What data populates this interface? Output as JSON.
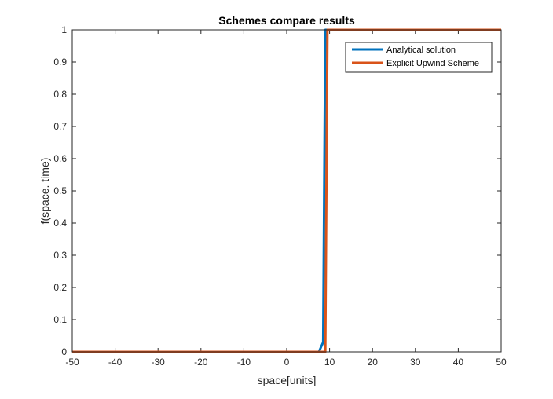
{
  "chart_data": {
    "type": "line",
    "title": "Schemes compare results",
    "xlabel": "space[units]",
    "ylabel": "f(space. time)",
    "xlim": [
      -50,
      50
    ],
    "ylim": [
      0,
      1
    ],
    "xticks": [
      -50,
      -40,
      -30,
      -20,
      -10,
      0,
      10,
      20,
      30,
      40,
      50
    ],
    "yticks": [
      0,
      0.1,
      0.2,
      0.3,
      0.4,
      0.5,
      0.6,
      0.7,
      0.8,
      0.9,
      1
    ],
    "xtick_labels": [
      "-50",
      "-40",
      "-30",
      "-20",
      "-10",
      "0",
      "10",
      "20",
      "30",
      "40",
      "50"
    ],
    "ytick_labels": [
      "0",
      "0.1",
      "0.2",
      "0.3",
      "0.4",
      "0.5",
      "0.6",
      "0.7",
      "0.8",
      "0.9",
      "1"
    ],
    "grid": false,
    "legend_position": "top-right",
    "series": [
      {
        "name": "Analytical solution",
        "color": "#0072BD",
        "x": [
          -50,
          7.5,
          8.5,
          9,
          50
        ],
        "y": [
          0,
          0,
          0.03,
          1,
          1
        ]
      },
      {
        "name": "Explicit Upwind Scheme",
        "color": "#D95319",
        "x": [
          -50,
          9,
          9.5,
          50
        ],
        "y": [
          0,
          0,
          1,
          1
        ]
      }
    ]
  }
}
